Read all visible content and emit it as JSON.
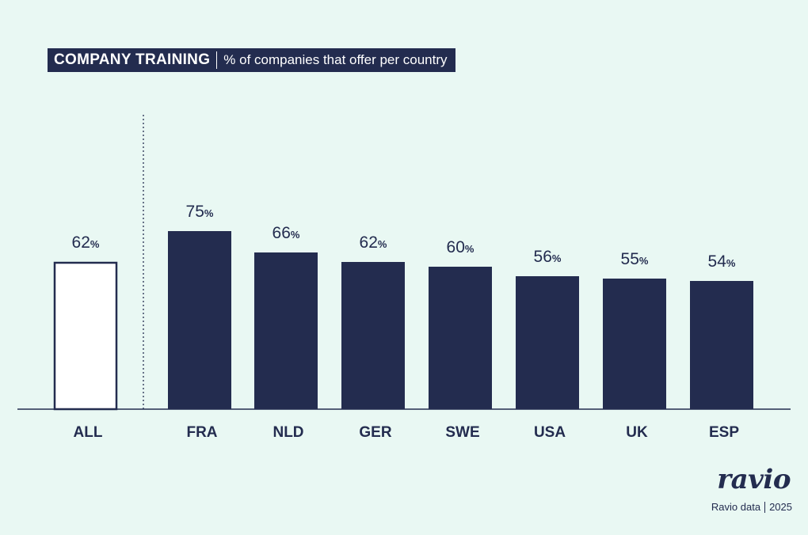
{
  "header": {
    "title": "COMPANY TRAINING",
    "subtitle": "% of companies that offer per country"
  },
  "chart_data": {
    "type": "bar",
    "title": "COMPANY TRAINING",
    "subtitle": "% of companies that offer per country",
    "categories": [
      "ALL",
      "FRA",
      "NLD",
      "GER",
      "SWE",
      "USA",
      "UK",
      "ESP"
    ],
    "values": [
      62,
      75,
      66,
      62,
      60,
      56,
      55,
      54
    ],
    "value_suffix": "%",
    "ylim": [
      0,
      100
    ],
    "grid": false,
    "legend": "none",
    "highlight": {
      "category": "ALL",
      "style": "outline"
    },
    "colors": {
      "bar": "#232c4f",
      "background": "#e9f8f3",
      "outline_fill": "#ffffff"
    }
  },
  "branding": {
    "logo": "ravio",
    "source": "Ravio data",
    "year": "2025"
  }
}
